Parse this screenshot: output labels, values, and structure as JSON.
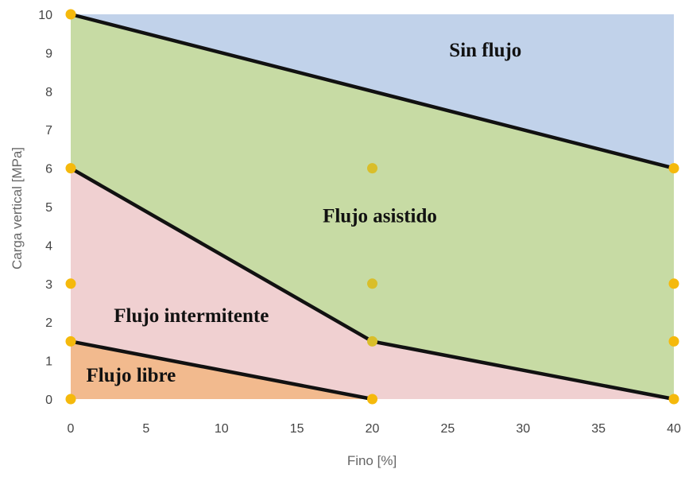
{
  "chart_data": {
    "type": "area",
    "title": "",
    "xlabel": "Fino [%]",
    "ylabel": "Carga vertical [MPa]",
    "xlim": [
      0,
      40
    ],
    "ylim": [
      0,
      10
    ],
    "xticks": [
      "0",
      "5",
      "10",
      "15",
      "20",
      "25",
      "30",
      "35",
      "40"
    ],
    "yticks": [
      "0",
      "1",
      "2",
      "3",
      "4",
      "5",
      "6",
      "7",
      "8",
      "9",
      "10"
    ],
    "grid": false,
    "regions": [
      {
        "label": "Sin flujo",
        "color": "#c1d2ea",
        "polygon": [
          [
            0,
            10
          ],
          [
            40,
            10
          ],
          [
            40,
            6
          ]
        ],
        "label_pos": [
          27.5,
          8.9
        ]
      },
      {
        "label": "Flujo asistido",
        "color": "#c7dba4",
        "polygon": [
          [
            0,
            6
          ],
          [
            0,
            10
          ],
          [
            40,
            6
          ],
          [
            40,
            0
          ],
          [
            20,
            1.5
          ]
        ],
        "label_pos": [
          20.5,
          4.6
        ]
      },
      {
        "label": "Flujo intermitente",
        "color": "#f0d0d1",
        "polygon": [
          [
            0,
            1.5
          ],
          [
            0,
            6
          ],
          [
            20,
            1.5
          ],
          [
            40,
            0
          ],
          [
            20,
            0
          ]
        ],
        "label_pos": [
          8,
          2
        ]
      },
      {
        "label": "Flujo libre",
        "color": "#f2ba8e",
        "polygon": [
          [
            0,
            0
          ],
          [
            0,
            1.5
          ],
          [
            20,
            0
          ]
        ],
        "label_pos": [
          4,
          0.45
        ]
      }
    ],
    "boundaries": [
      {
        "x": [
          0,
          40
        ],
        "y": [
          10,
          6
        ]
      },
      {
        "x": [
          0,
          20,
          40
        ],
        "y": [
          6,
          1.5,
          0
        ]
      },
      {
        "x": [
          0,
          20
        ],
        "y": [
          1.5,
          0
        ]
      }
    ],
    "points": [
      {
        "x": 0,
        "y": 10,
        "color": "#f5b90c"
      },
      {
        "x": 0,
        "y": 6,
        "color": "#f5b90c"
      },
      {
        "x": 0,
        "y": 3,
        "color": "#f5b90c"
      },
      {
        "x": 0,
        "y": 1.5,
        "color": "#f5b90c"
      },
      {
        "x": 0,
        "y": 0,
        "color": "#f5b90c"
      },
      {
        "x": 20,
        "y": 6,
        "color": "#d9be2a"
      },
      {
        "x": 20,
        "y": 3,
        "color": "#d9be2a"
      },
      {
        "x": 20,
        "y": 1.5,
        "color": "#d9be2a"
      },
      {
        "x": 20,
        "y": 0,
        "color": "#f5b90c"
      },
      {
        "x": 40,
        "y": 6,
        "color": "#f5b90c"
      },
      {
        "x": 40,
        "y": 3,
        "color": "#f5b90c"
      },
      {
        "x": 40,
        "y": 1.5,
        "color": "#f5b90c"
      },
      {
        "x": 40,
        "y": 0,
        "color": "#f5b90c"
      }
    ],
    "line_color": "#111111"
  }
}
